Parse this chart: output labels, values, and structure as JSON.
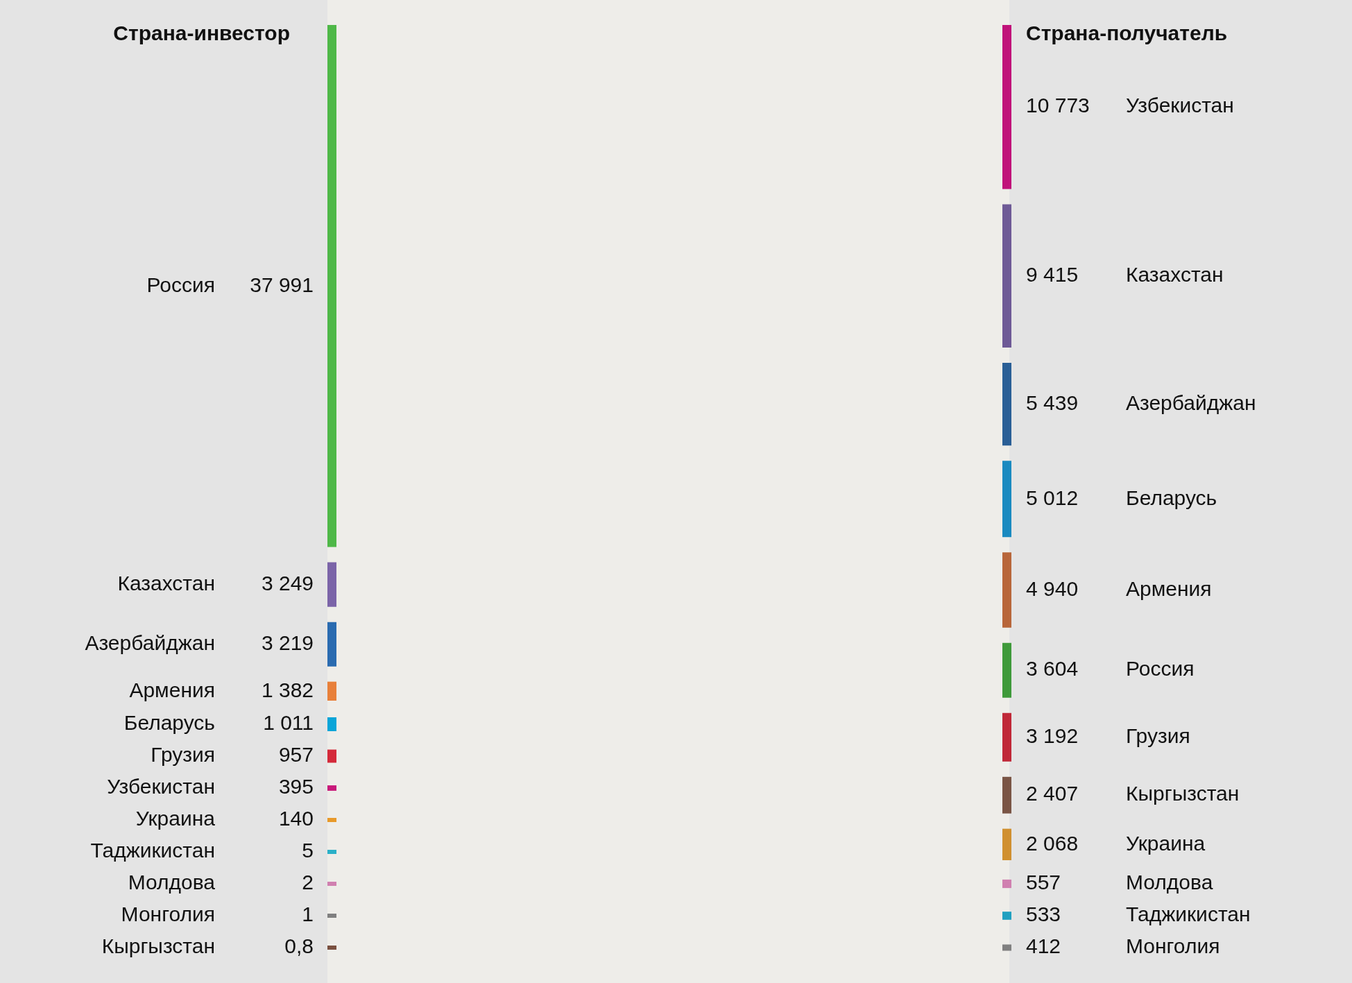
{
  "chart_data": [
    {
      "type": "other",
      "title": "Страна-инвестор",
      "categories": [
        "Россия",
        "Казахстан",
        "Азербайджан",
        "Армения",
        "Беларусь",
        "Грузия",
        "Узбекистан",
        "Украина",
        "Таджикистан",
        "Молдова",
        "Монголия",
        "Кыргызстан"
      ],
      "values": [
        37991,
        3249,
        3219,
        1382,
        1011,
        957,
        395,
        140,
        5,
        2,
        1,
        0.8
      ],
      "value_labels": [
        "37 991",
        "3 249",
        "3 219",
        "1 382",
        "1 011",
        "957",
        "395",
        "140",
        "5",
        "2",
        "1",
        "0,8"
      ],
      "colors": [
        "#4fb848",
        "#7b64a8",
        "#2a6bb0",
        "#e8803a",
        "#0aa5d8",
        "#d42a3a",
        "#c8197a",
        "#e89a2a",
        "#2ab0c8",
        "#d080b0",
        "#808080",
        "#7a5040"
      ]
    },
    {
      "type": "other",
      "title": "Страна-получатель",
      "categories": [
        "Узбекистан",
        "Казахстан",
        "Азербайджан",
        "Беларусь",
        "Армения",
        "Россия",
        "Грузия",
        "Кыргызстан",
        "Украина",
        "Молдова",
        "Таджикистан",
        "Монголия"
      ],
      "values": [
        10773,
        9415,
        5439,
        5012,
        4940,
        3604,
        3192,
        2407,
        2068,
        557,
        533,
        412
      ],
      "value_labels": [
        "10 773",
        "9 415",
        "5 439",
        "5 012",
        "4 940",
        "3 604",
        "3 192",
        "2 407",
        "2 068",
        "557",
        "533",
        "412"
      ],
      "colors": [
        "#c0137a",
        "#6e5a96",
        "#2a5f96",
        "#1a8ac0",
        "#b8663a",
        "#3f9a3a",
        "#c02838",
        "#7a5545",
        "#d09030",
        "#d080b0",
        "#20a0c0",
        "#808080"
      ]
    }
  ]
}
